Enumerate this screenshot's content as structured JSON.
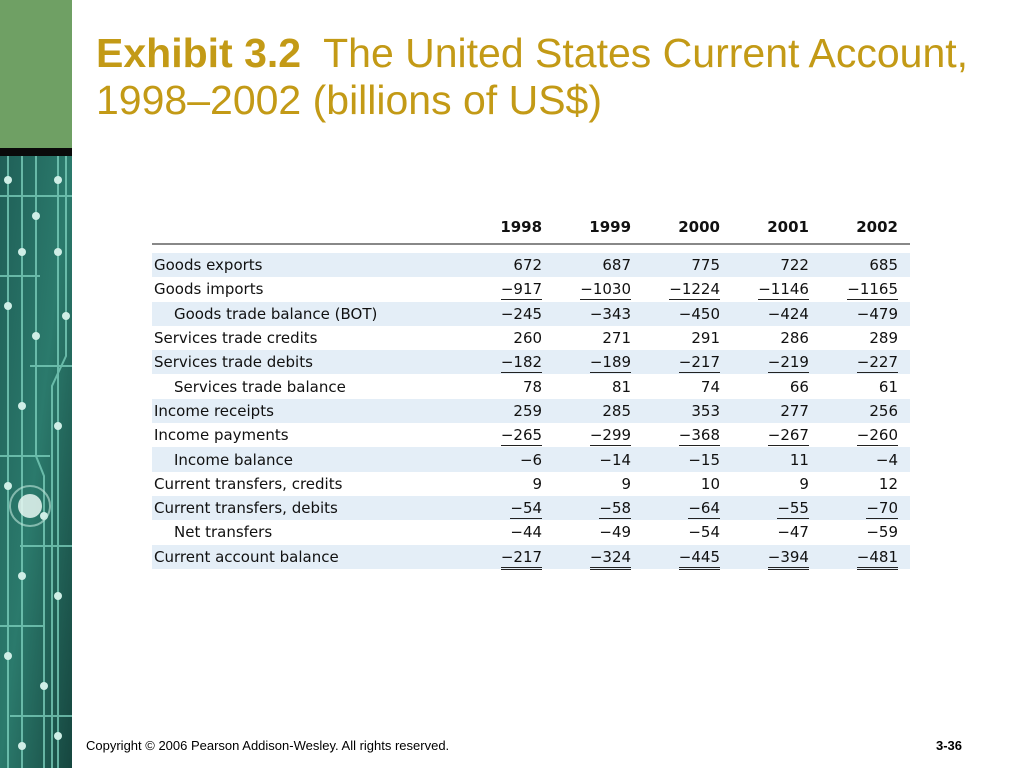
{
  "slide": {
    "title_bold": "Exhibit 3.2",
    "title_rest": "The United States Current Account, 1998–2002 (billions of US$)"
  },
  "table": {
    "columns": [
      "1998",
      "1999",
      "2000",
      "2001",
      "2002"
    ],
    "rows": [
      {
        "label": "Goods exports",
        "values": [
          "672",
          "687",
          "775",
          "722",
          "685"
        ]
      },
      {
        "label": "Goods imports",
        "values": [
          "−917",
          "−1030",
          "−1224",
          "−1146",
          "−1165"
        ]
      },
      {
        "label": "Goods trade balance (BOT)",
        "values": [
          "−245",
          "−343",
          "−450",
          "−424",
          "−479"
        ]
      },
      {
        "label": "Services trade credits",
        "values": [
          "260",
          "271",
          "291",
          "286",
          "289"
        ]
      },
      {
        "label": "Services trade debits",
        "values": [
          "−182",
          "−189",
          "−217",
          "−219",
          "−227"
        ]
      },
      {
        "label": "Services trade balance",
        "values": [
          "78",
          "81",
          "74",
          "66",
          "61"
        ]
      },
      {
        "label": "Income receipts",
        "values": [
          "259",
          "285",
          "353",
          "277",
          "256"
        ]
      },
      {
        "label": "Income payments",
        "values": [
          "−265",
          "−299",
          "−368",
          "−267",
          "−260"
        ]
      },
      {
        "label": "Income balance",
        "values": [
          "−6",
          "−14",
          "−15",
          "11",
          "−4"
        ]
      },
      {
        "label": "Current transfers, credits",
        "values": [
          "9",
          "9",
          "10",
          "9",
          "12"
        ]
      },
      {
        "label": "Current transfers, debits",
        "values": [
          "−54",
          "−58",
          "−64",
          "−55",
          "−70"
        ]
      },
      {
        "label": "Net transfers",
        "values": [
          "−44",
          "−49",
          "−54",
          "−47",
          "−59"
        ]
      },
      {
        "label": "Current account balance",
        "values": [
          "−217",
          "−324",
          "−445",
          "−394",
          "−481"
        ]
      }
    ]
  },
  "footer": {
    "copyright": "Copyright © 2006 Pearson Addison-Wesley. All rights reserved.",
    "page_number": "3-36"
  },
  "theme": {
    "title_color": "#c39a16",
    "band_color": "#e4eef7",
    "sidebar_green": "#6fa064"
  }
}
